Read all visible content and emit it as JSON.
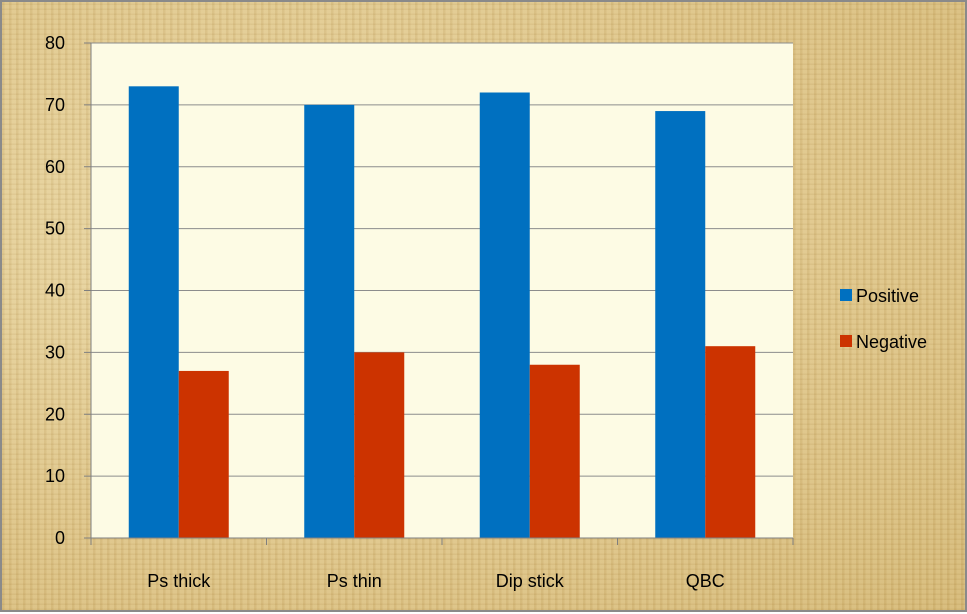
{
  "chart_data": {
    "type": "bar",
    "categories": [
      "Ps thick",
      "Ps thin",
      "Dip stick",
      "QBC"
    ],
    "series": [
      {
        "name": "Positive",
        "values": [
          73,
          70,
          72,
          69
        ],
        "color": "#0070c0"
      },
      {
        "name": "Negative",
        "values": [
          27,
          30,
          28,
          31
        ],
        "color": "#cc3300"
      }
    ],
    "yticks": [
      "0",
      "10",
      "20",
      "30",
      "40",
      "50",
      "60",
      "70",
      "80"
    ],
    "ylim": [
      0,
      80
    ],
    "grid": true,
    "legend_position": "right",
    "plot_background": "#fdfbe4",
    "grid_color": "#8c8c8c"
  }
}
